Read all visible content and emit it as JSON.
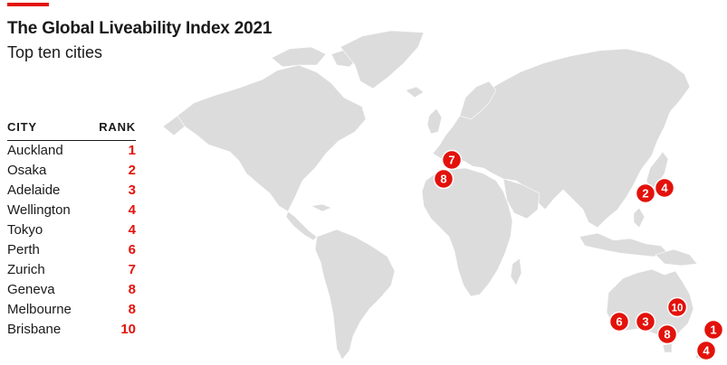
{
  "header": {
    "title": "The Global Liveability Index 2021",
    "subtitle": "Top ten cities",
    "accent_color": "#e3120b"
  },
  "table": {
    "col_city": "CITY",
    "col_rank": "RANK",
    "rows": [
      {
        "city": "Auckland",
        "rank": "1"
      },
      {
        "city": "Osaka",
        "rank": "2"
      },
      {
        "city": "Adelaide",
        "rank": "3"
      },
      {
        "city": "Wellington",
        "rank": "4"
      },
      {
        "city": "Tokyo",
        "rank": "4"
      },
      {
        "city": "Perth",
        "rank": "6"
      },
      {
        "city": "Zurich",
        "rank": "7"
      },
      {
        "city": "Geneva",
        "rank": "8"
      },
      {
        "city": "Melbourne",
        "rank": "8"
      },
      {
        "city": "Brisbane",
        "rank": "10"
      }
    ]
  },
  "map": {
    "land_color": "#dcdcdc",
    "marker_color": "#e3120b",
    "markers": [
      {
        "city": "Zurich",
        "label": "7"
      },
      {
        "city": "Geneva",
        "label": "8"
      },
      {
        "city": "Osaka",
        "label": "2"
      },
      {
        "city": "Tokyo",
        "label": "4"
      },
      {
        "city": "Brisbane",
        "label": "10"
      },
      {
        "city": "Perth",
        "label": "6"
      },
      {
        "city": "Adelaide",
        "label": "3"
      },
      {
        "city": "Melbourne",
        "label": "8"
      },
      {
        "city": "Auckland",
        "label": "1"
      },
      {
        "city": "Wellington",
        "label": "4"
      }
    ]
  }
}
